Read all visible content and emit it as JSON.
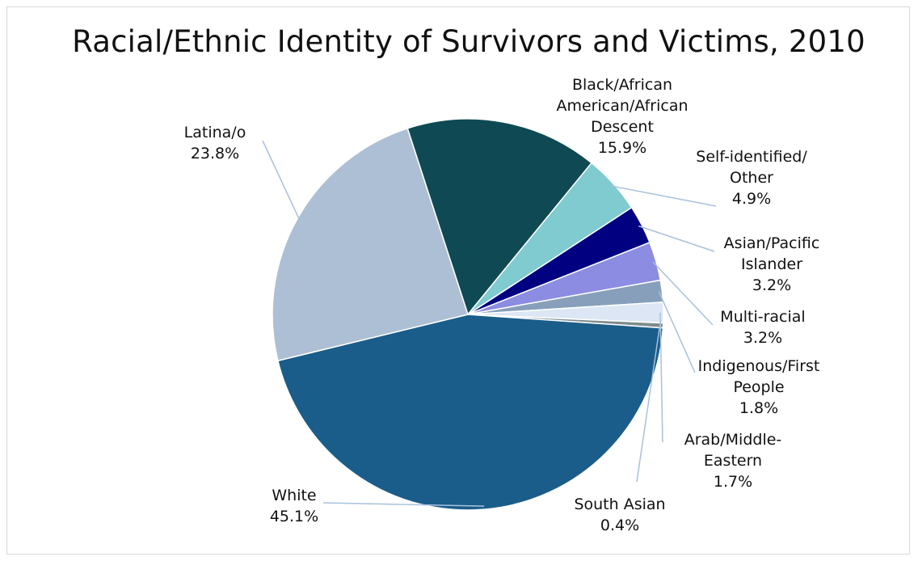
{
  "chart_data": {
    "type": "pie",
    "title": "Racial/Ethnic Identity of Survivors and Victims, 2010",
    "slices": [
      {
        "label": [
          "Black/African",
          "American/African",
          "Descent"
        ],
        "value": 15.9,
        "value_label": "15.9%",
        "color": "#0f4a54"
      },
      {
        "label": [
          "Self-identified/",
          "Other"
        ],
        "value": 4.9,
        "value_label": "4.9%",
        "color": "#7fcbcf"
      },
      {
        "label": [
          "Asian/Pacific",
          "Islander"
        ],
        "value": 3.2,
        "value_label": "3.2%",
        "color": "#000080"
      },
      {
        "label": [
          "Multi-racial"
        ],
        "value": 3.2,
        "value_label": "3.2%",
        "color": "#8c8ce3"
      },
      {
        "label": [
          "Indigenous/First",
          "People"
        ],
        "value": 1.8,
        "value_label": "1.8%",
        "color": "#879fbb"
      },
      {
        "label": [
          "Arab/Middle-",
          "Eastern"
        ],
        "value": 1.7,
        "value_label": "1.7%",
        "color": "#dce6f4"
      },
      {
        "label": [
          "South Asian"
        ],
        "value": 0.4,
        "value_label": "0.4%",
        "color": "#7f8c8d"
      },
      {
        "label": [
          "White"
        ],
        "value": 45.1,
        "value_label": "45.1%",
        "color": "#1a5d8a"
      },
      {
        "label": [
          "Latina/o"
        ],
        "value": 23.8,
        "value_label": "23.8%",
        "color": "#adbfd4"
      }
    ]
  }
}
